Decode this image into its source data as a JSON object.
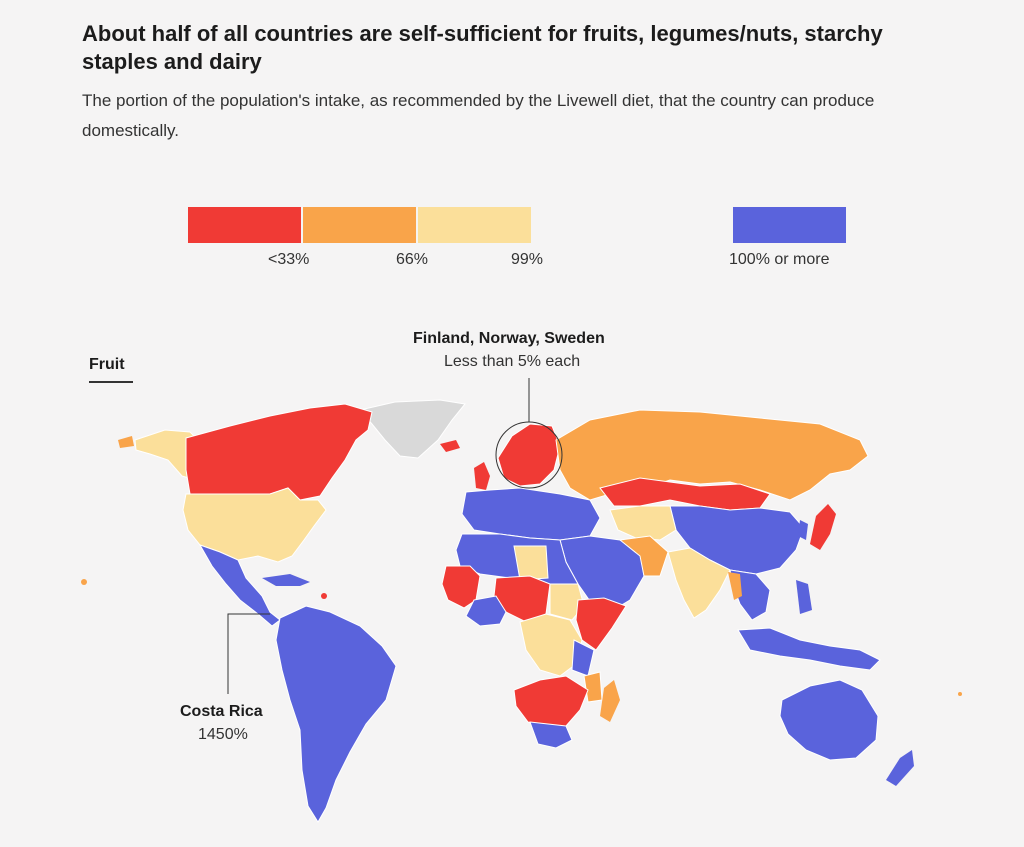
{
  "header": {
    "title": "About half of all countries are self-sufficient for fruits, legumes/nuts, starchy staples and dairy",
    "subtitle": "The portion of the population's intake, as recommended by the Livewell diet, that the country can produce domestically."
  },
  "legend": {
    "items": [
      {
        "label": "<33%",
        "color": "#f03a35"
      },
      {
        "label": "66%",
        "color": "#f9a44a"
      },
      {
        "label": "99%",
        "color": "#fbdf9a"
      },
      {
        "label": "100% or more",
        "color": "#5a63dc"
      }
    ],
    "no_data_color": "#d9d9d9"
  },
  "tab": {
    "label": "Fruit"
  },
  "callouts": {
    "nordic": {
      "title": "Finland, Norway, Sweden",
      "value": "Less than 5% each"
    },
    "costa_rica": {
      "title": "Costa Rica",
      "value": "1450%"
    }
  },
  "map": {
    "category": "Fruit",
    "regions": [
      {
        "name": "Canada",
        "category": "<33%"
      },
      {
        "name": "Alaska",
        "category": "99%"
      },
      {
        "name": "United States",
        "category": "99%"
      },
      {
        "name": "Greenland",
        "category": "no data"
      },
      {
        "name": "Mexico & Central America",
        "category": "100% or more"
      },
      {
        "name": "South America",
        "category": "100% or more"
      },
      {
        "name": "Nordic countries",
        "category": "<33%"
      },
      {
        "name": "Russia",
        "category": "66%"
      },
      {
        "name": "Western Europe",
        "category": "100% or more"
      },
      {
        "name": "China",
        "category": "100% or more"
      },
      {
        "name": "Mongolia",
        "category": "<33%"
      },
      {
        "name": "India",
        "category": "99%"
      },
      {
        "name": "Middle East",
        "category": "100% or more"
      },
      {
        "name": "West Africa",
        "category": "<33%"
      },
      {
        "name": "Central Africa",
        "category": "99%"
      },
      {
        "name": "East Africa",
        "category": "<33%"
      },
      {
        "name": "Southern Africa",
        "category": "<33%"
      },
      {
        "name": "Madagascar",
        "category": "66%"
      },
      {
        "name": "Southeast Asia",
        "category": "100% or more"
      },
      {
        "name": "Japan",
        "category": "<33%"
      },
      {
        "name": "Australia",
        "category": "100% or more"
      },
      {
        "name": "New Zealand",
        "category": "100% or more"
      }
    ]
  }
}
